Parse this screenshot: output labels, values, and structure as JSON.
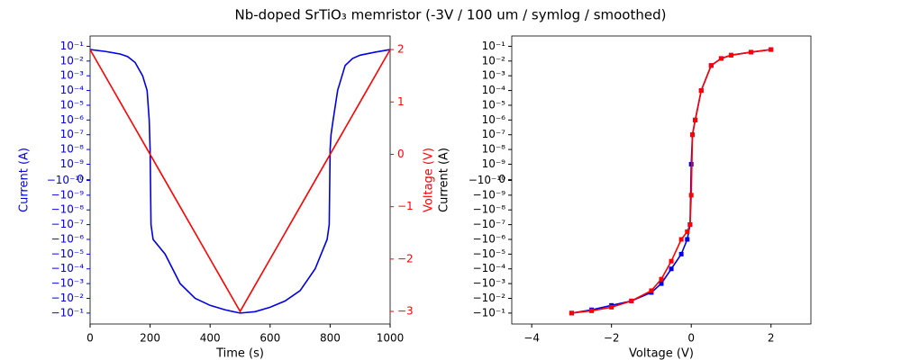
{
  "title": "Nb-doped SrTiO₃ memristor (-3V / 100 um / symlog / smoothed)",
  "chart_data": [
    {
      "type": "line",
      "xlabel": "Time (s)",
      "ylabel": "Current (A)",
      "y2label": "Voltage (V)",
      "yscale": "symlog",
      "linthresh": 1e-10,
      "linscale": 0.05,
      "color_axes": true,
      "x": [
        0,
        50,
        100,
        125,
        150,
        175,
        190,
        197,
        200,
        203,
        210,
        250,
        300,
        350,
        400,
        450,
        500,
        550,
        600,
        650,
        700,
        750,
        790,
        797,
        800,
        803,
        810,
        825,
        850,
        875,
        900,
        950,
        1000
      ],
      "xlim": [
        0,
        1000
      ],
      "xticks": [
        0,
        200,
        400,
        600,
        800,
        1000
      ],
      "ylim": [
        -0.55,
        0.5
      ],
      "yticks": [
        {
          "value": 0.1,
          "label": "10⁻¹"
        },
        {
          "value": 0.01,
          "label": "10⁻²"
        },
        {
          "value": 0.001,
          "label": "10⁻³"
        },
        {
          "value": 0.0001,
          "label": "10⁻⁴"
        },
        {
          "value": 1e-05,
          "label": "10⁻⁵"
        },
        {
          "value": 1e-06,
          "label": "10⁻⁶"
        },
        {
          "value": 1e-07,
          "label": "10⁻⁷"
        },
        {
          "value": 1e-08,
          "label": "10⁻⁸"
        },
        {
          "value": 1e-09,
          "label": "10⁻⁹"
        },
        0,
        {
          "value": -1e-10,
          "label": "−10⁻¹⁰"
        },
        {
          "value": -1e-09,
          "label": "−10⁻⁹"
        },
        {
          "value": -1e-08,
          "label": "−10⁻⁸"
        },
        {
          "value": -1e-07,
          "label": "−10⁻⁷"
        },
        {
          "value": -1e-06,
          "label": "−10⁻⁶"
        },
        {
          "value": -1e-05,
          "label": "−10⁻⁵"
        },
        {
          "value": -0.0001,
          "label": "−10⁻⁴"
        },
        {
          "value": -0.001,
          "label": "−10⁻³"
        },
        {
          "value": -0.01,
          "label": "−10⁻²"
        },
        {
          "value": -0.1,
          "label": "−10⁻¹"
        }
      ],
      "y2lim": [
        -3.24,
        2.26
      ],
      "y2ticks": [
        {
          "value": -3,
          "label": "−3"
        },
        {
          "value": -2,
          "label": "−2"
        },
        {
          "value": -1,
          "label": "−1"
        },
        0,
        1,
        2
      ],
      "series": [
        {
          "color": "#0000e6",
          "values": [
            0.06,
            0.045,
            0.03,
            0.02,
            0.008,
            0.001,
            0.0001,
            1e-06,
            1e-08,
            -1e-07,
            -1e-06,
            -1e-05,
            -0.001,
            -0.01,
            -0.03,
            -0.06,
            -0.1,
            -0.08,
            -0.04,
            -0.015,
            -0.003,
            -0.0001,
            -1e-06,
            -1e-07,
            1e-08,
            1e-07,
            1e-06,
            0.0001,
            0.005,
            0.015,
            0.025,
            0.04,
            0.06
          ]
        },
        {
          "color": "#ff0000",
          "axis": "y2",
          "values": [
            2,
            1.5,
            1,
            0.75,
            0.5,
            0.25,
            0.1,
            0.03,
            0,
            -0.03,
            -0.1,
            -0.5,
            -1,
            -1.5,
            -2,
            -2.5,
            -3,
            -2.5,
            -2,
            -1.5,
            -1,
            -0.5,
            -0.1,
            -0.03,
            0,
            0.03,
            0.1,
            0.25,
            0.5,
            0.75,
            1,
            1.5,
            2
          ]
        }
      ]
    },
    {
      "type": "line",
      "markers": true,
      "xlabel": "Voltage (V)",
      "ylabel": "Current (A)",
      "yscale": "symlog",
      "linthresh": 1e-10,
      "linscale": 0.05,
      "x": [
        -3,
        -2.5,
        -2,
        -1.5,
        -1,
        -0.75,
        -0.5,
        -0.25,
        -0.1,
        -0.03,
        0,
        0.03,
        0.1,
        0.25,
        0.5,
        0.75,
        1,
        1.5,
        2
      ],
      "xlim": [
        -4.5,
        3
      ],
      "xticks": [
        {
          "value": -4,
          "label": "−4"
        },
        {
          "value": -2,
          "label": "−2"
        },
        0,
        2
      ],
      "ylim": [
        -0.55,
        0.5
      ],
      "yticks": [
        {
          "value": 0.1,
          "label": "10⁻¹"
        },
        {
          "value": 0.01,
          "label": "10⁻²"
        },
        {
          "value": 0.001,
          "label": "10⁻³"
        },
        {
          "value": 0.0001,
          "label": "10⁻⁴"
        },
        {
          "value": 1e-05,
          "label": "10⁻⁵"
        },
        {
          "value": 1e-06,
          "label": "10⁻⁶"
        },
        {
          "value": 1e-07,
          "label": "10⁻⁷"
        },
        {
          "value": 1e-08,
          "label": "10⁻⁸"
        },
        {
          "value": 1e-09,
          "label": "10⁻⁹"
        },
        0,
        {
          "value": -1e-10,
          "label": "−10⁻¹⁰"
        },
        {
          "value": -1e-09,
          "label": "−10⁻⁹"
        },
        {
          "value": -1e-08,
          "label": "−10⁻⁸"
        },
        {
          "value": -1e-07,
          "label": "−10⁻⁷"
        },
        {
          "value": -1e-06,
          "label": "−10⁻⁶"
        },
        {
          "value": -1e-05,
          "label": "−10⁻⁵"
        },
        {
          "value": -0.0001,
          "label": "−10⁻⁴"
        },
        {
          "value": -0.001,
          "label": "−10⁻³"
        },
        {
          "value": -0.01,
          "label": "−10⁻²"
        },
        {
          "value": -0.1,
          "label": "−10⁻¹"
        }
      ],
      "series": [
        {
          "color": "#0000e6",
          "values": [
            -0.1,
            -0.06,
            -0.03,
            -0.015,
            -0.004,
            -0.001,
            -0.0001,
            -1e-05,
            -1e-06,
            -1e-07,
            1e-09,
            1e-07,
            1e-06,
            0.0001,
            0.005,
            0.015,
            0.025,
            0.04,
            0.06
          ]
        },
        {
          "color": "#ff0000",
          "values": [
            -0.1,
            -0.07,
            -0.04,
            -0.015,
            -0.003,
            -0.0005,
            -3e-05,
            -1e-06,
            -3e-07,
            -1e-07,
            -1e-09,
            1e-07,
            1e-06,
            0.0001,
            0.005,
            0.015,
            0.025,
            0.04,
            0.06
          ]
        }
      ]
    }
  ]
}
